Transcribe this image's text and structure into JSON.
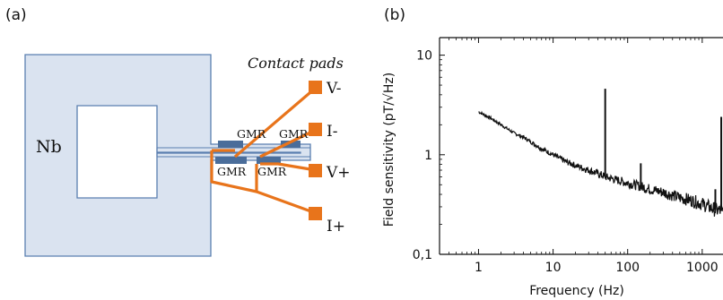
{
  "panel_a": {
    "label": "(a)",
    "material_label": "Nb",
    "contact_pads_label": "Contact pads",
    "gmr_label": "GMR",
    "pads": [
      "V-",
      "I-",
      "V+",
      "I+"
    ],
    "colors": {
      "nb_fill": "#dae3f0",
      "nb_stroke": "#5a7fb0",
      "wire": "#e8741b",
      "gmr": "#4a6d9a"
    }
  },
  "panel_b": {
    "label": "(b)",
    "chart_data": {
      "type": "line",
      "xlabel": "Frequency (Hz)",
      "ylabel": "Field sensitivity (pT/√Hz)",
      "x_scale": "log",
      "y_scale": "log",
      "xlim": [
        0.3,
        1900
      ],
      "ylim": [
        0.1,
        15
      ],
      "x_ticks": [
        1,
        10,
        100,
        1000
      ],
      "x_tick_labels": [
        "1",
        "10",
        "100",
        "1000"
      ],
      "y_ticks": [
        0.1,
        1,
        10
      ],
      "y_tick_labels": [
        "0,1",
        "1",
        "10"
      ],
      "series": [
        {
          "x": [
            1,
            1.5,
            2,
            3,
            4,
            5,
            7,
            10,
            15,
            20,
            30,
            40,
            50,
            70,
            100,
            150,
            200,
            300,
            500,
            700,
            1000,
            1500,
            1900
          ],
          "y": [
            2.7,
            2.3,
            2.0,
            1.65,
            1.5,
            1.35,
            1.15,
            1.0,
            0.85,
            0.78,
            0.7,
            0.65,
            0.6,
            0.56,
            0.52,
            0.48,
            0.45,
            0.42,
            0.37,
            0.35,
            0.32,
            0.28,
            0.27
          ]
        }
      ],
      "spikes": [
        {
          "x": 50,
          "y": 4.6
        },
        {
          "x": 150,
          "y": 0.82
        },
        {
          "x": 1500,
          "y": 0.45
        },
        {
          "x": 1800,
          "y": 2.4
        }
      ],
      "color": "#111111"
    }
  }
}
